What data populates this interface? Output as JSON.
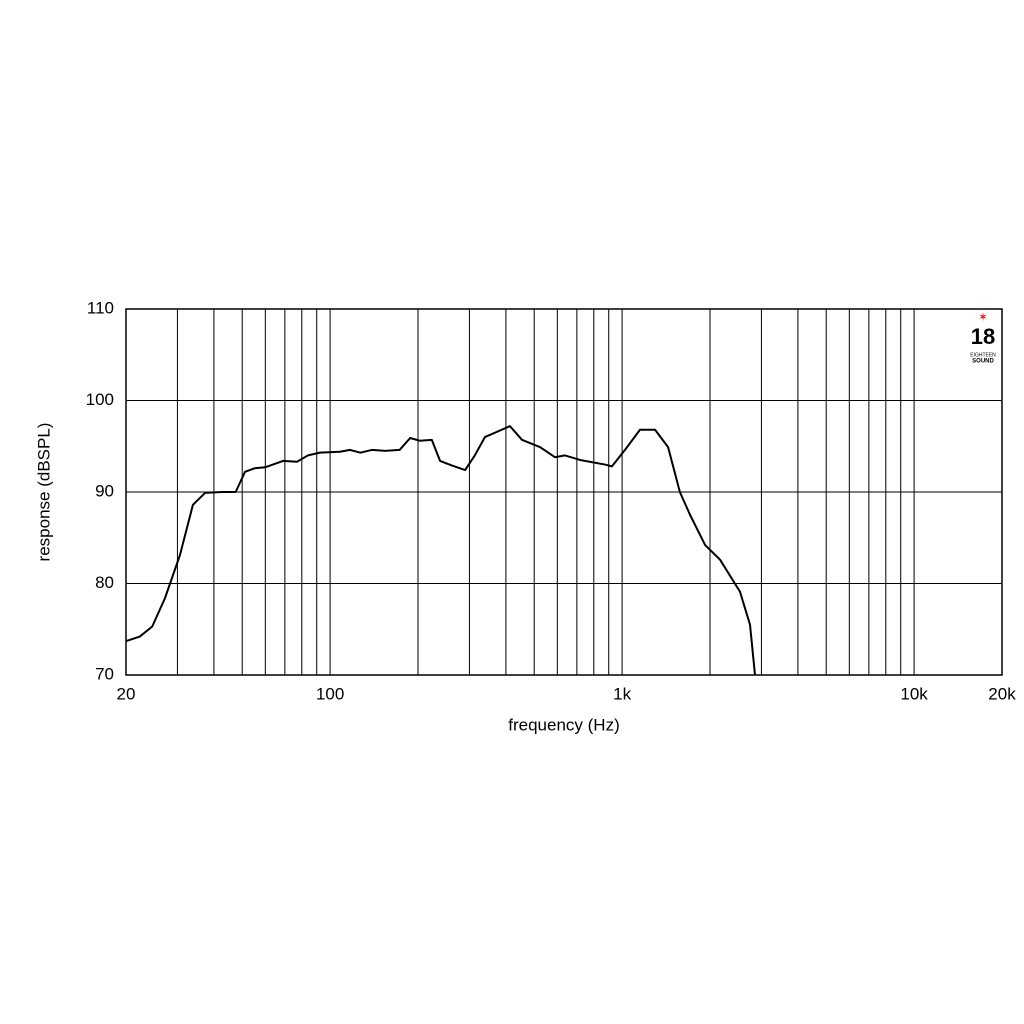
{
  "chart_data": {
    "type": "line",
    "xlabel": "frequency (Hz)",
    "ylabel": "response (dBSPL)",
    "xscale": "log",
    "xlim": [
      20,
      20000
    ],
    "ylim": [
      70,
      110
    ],
    "xticks": [
      20,
      100,
      {
        "value": 1000,
        "label": "1k"
      },
      {
        "value": 10000,
        "label": "10k"
      },
      {
        "value": 20000,
        "label": "20k"
      }
    ],
    "xgrid": [
      30,
      40,
      50,
      60,
      70,
      80,
      90,
      200,
      300,
      400,
      500,
      600,
      700,
      800,
      900,
      2000,
      3000,
      4000,
      5000,
      6000,
      7000,
      8000,
      9000
    ],
    "yticks": [
      70,
      80,
      90,
      100,
      110
    ],
    "grid": true,
    "logo_text": [
      "18",
      "EIGHTEEN",
      "SOUND"
    ],
    "x": [
      20,
      22.3,
      24.6,
      27.2,
      30.6,
      33.9,
      37.3,
      42.6,
      47.5,
      51.1,
      55.3,
      59.9,
      69,
      77,
      84,
      92.3,
      108,
      117,
      127,
      139,
      154,
      173,
      188,
      203,
      223,
      238,
      261,
      290,
      313,
      339,
      413,
      454,
      524,
      589,
      637,
      718,
      874,
      923,
      1023,
      1151,
      1297,
      1437,
      1577,
      1709,
      1925,
      2165,
      2534,
      2742,
      2852
    ],
    "series": [
      {
        "color": "#000000",
        "values": [
          73.7,
          74.2,
          75.3,
          78.4,
          83.1,
          88.6,
          89.9,
          90.0,
          90.0,
          92.2,
          92.6,
          92.7,
          93.4,
          93.3,
          94.0,
          94.3,
          94.4,
          94.6,
          94.3,
          94.6,
          94.5,
          94.6,
          95.9,
          95.6,
          95.7,
          93.4,
          92.9,
          92.4,
          94.0,
          96.0,
          97.2,
          95.7,
          94.9,
          93.8,
          94.0,
          93.5,
          93.0,
          92.8,
          94.6,
          96.8,
          96.8,
          94.9,
          90.0,
          87.5,
          84.2,
          82.6,
          79.1,
          75.5,
          70.0
        ]
      }
    ]
  }
}
